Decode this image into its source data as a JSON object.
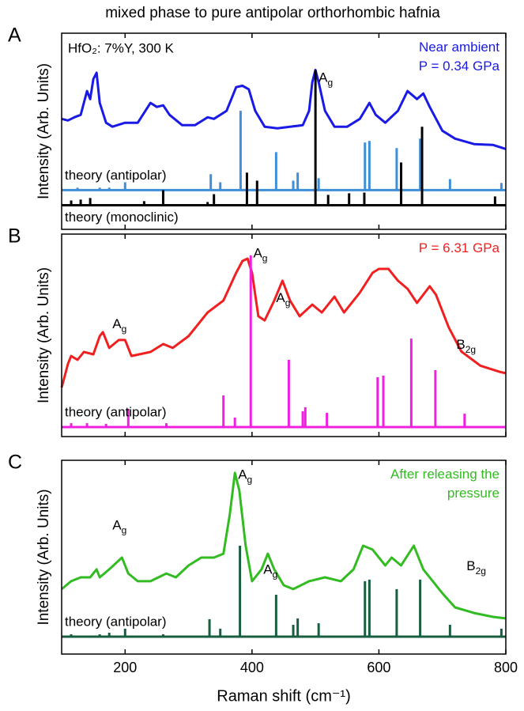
{
  "chart_data": [
    {
      "type": "line",
      "panel": "A",
      "title": "mixed phase to pure antipolar orthorhombic hafnia",
      "y_label": "Intensity (Arb. Units)",
      "sample": "HfO₂: 7%Y, 300 K",
      "pressure": "P = 0.34 GPa",
      "pressure_color": "#1a1ae6",
      "xlim": [
        100,
        800
      ],
      "ylim": [
        -0.12,
        1
      ],
      "series": [
        {
          "name": "Near ambient",
          "style": "line",
          "color": "#1a1ae6",
          "x": [
            100,
            110,
            120,
            130,
            135,
            140,
            145,
            150,
            155,
            160,
            170,
            180,
            200,
            220,
            240,
            250,
            260,
            270,
            290,
            310,
            330,
            340,
            360,
            375,
            385,
            395,
            405,
            420,
            440,
            460,
            480,
            490,
            495,
            500,
            505,
            515,
            530,
            550,
            570,
            585,
            595,
            610,
            630,
            645,
            660,
            670,
            680,
            700,
            720,
            750,
            780,
            800
          ],
          "values": [
            0.511,
            0.502,
            0.52,
            0.534,
            0.602,
            0.67,
            0.624,
            0.738,
            0.774,
            0.602,
            0.489,
            0.466,
            0.489,
            0.489,
            0.602,
            0.579,
            0.588,
            0.534,
            0.475,
            0.475,
            0.52,
            0.511,
            0.557,
            0.692,
            0.7,
            0.68,
            0.557,
            0.466,
            0.457,
            0.466,
            0.475,
            0.557,
            0.72,
            0.79,
            0.72,
            0.557,
            0.466,
            0.466,
            0.511,
            0.602,
            0.534,
            0.489,
            0.557,
            0.67,
            0.624,
            0.656,
            0.579,
            0.443,
            0.398,
            0.367,
            0.362,
            0.339
          ]
        },
        {
          "name": "theory (antipolar)",
          "style": "stick",
          "color": "#3f8fd8",
          "baseline": 0.104,
          "label_position": "above",
          "x": [
            125,
            160,
            175,
            200,
            335,
            350,
            382,
            438,
            465,
            472,
            505,
            578,
            585,
            628,
            665,
            712,
            793
          ],
          "values": [
            0.118,
            0.118,
            0.118,
            0.149,
            0.195,
            0.149,
            0.557,
            0.321,
            0.158,
            0.204,
            0.172,
            0.376,
            0.385,
            0.344,
            0.398,
            0.167,
            0.145
          ]
        },
        {
          "name": "theory (monoclinic)",
          "style": "stick",
          "color": "#000000",
          "baseline": 0.018,
          "label_position": "below",
          "x": [
            115,
            130,
            145,
            230,
            260,
            330,
            340,
            392,
            408,
            500,
            520,
            553,
            577,
            635,
            668,
            783
          ],
          "values": [
            0.045,
            0.05,
            0.059,
            0.041,
            0.104,
            0.036,
            0.081,
            0.204,
            0.158,
            0.79,
            0.077,
            0.086,
            0.09,
            0.262,
            0.466,
            0.068
          ]
        }
      ],
      "annotations": [
        {
          "text": "A",
          "sub": "g",
          "x": 505,
          "y": 0.74
        }
      ]
    },
    {
      "type": "line",
      "panel": "B",
      "y_label": "Intensity (Arb. Units)",
      "pressure": "P = 6.31 GPa",
      "pressure_color": "#f02020",
      "xlim": [
        100,
        800
      ],
      "ylim": [
        0,
        1
      ],
      "series": [
        {
          "style": "line",
          "color": "#f02020",
          "x": [
            100,
            110,
            115,
            125,
            135,
            150,
            160,
            165,
            175,
            190,
            200,
            210,
            240,
            260,
            275,
            300,
            330,
            355,
            375,
            385,
            393,
            400,
            410,
            420,
            435,
            448,
            460,
            475,
            495,
            510,
            530,
            545,
            570,
            590,
            600,
            615,
            630,
            645,
            660,
            680,
            690,
            710,
            730,
            760,
            790,
            800
          ],
          "values": [
            0.242,
            0.359,
            0.398,
            0.379,
            0.418,
            0.406,
            0.496,
            0.516,
            0.438,
            0.477,
            0.477,
            0.398,
            0.418,
            0.457,
            0.438,
            0.496,
            0.613,
            0.672,
            0.809,
            0.867,
            0.879,
            0.809,
            0.594,
            0.574,
            0.672,
            0.77,
            0.672,
            0.594,
            0.652,
            0.613,
            0.691,
            0.613,
            0.711,
            0.809,
            0.828,
            0.828,
            0.77,
            0.73,
            0.66,
            0.742,
            0.7,
            0.54,
            0.42,
            0.35,
            0.32,
            0.313
          ]
        },
        {
          "name": "theory (antipolar)",
          "style": "stick",
          "color": "#f020e0",
          "baseline": 0.047,
          "label_position": "above",
          "x": [
            115,
            140,
            170,
            205,
            265,
            355,
            373,
            398,
            458,
            480,
            484,
            518,
            598,
            607,
            651,
            689,
            735
          ],
          "values": [
            0.066,
            0.066,
            0.063,
            0.137,
            0.066,
            0.203,
            0.094,
            0.895,
            0.379,
            0.125,
            0.145,
            0.117,
            0.293,
            0.301,
            0.484,
            0.328,
            0.113
          ]
        }
      ],
      "annotations": [
        {
          "text": "A",
          "sub": "g",
          "x": 402,
          "y": 0.9
        },
        {
          "text": "A",
          "sub": "g",
          "x": 438,
          "y": 0.68
        },
        {
          "text": "A",
          "sub": "g",
          "x": 180,
          "y": 0.55
        },
        {
          "text": "B",
          "sub": "2g",
          "x": 722,
          "y": 0.45
        }
      ]
    },
    {
      "type": "line",
      "panel": "C",
      "y_label": "Intensity (Arb. Units)",
      "x_label": "Raman shift (cm⁻¹)",
      "xlim": [
        100,
        800
      ],
      "ylim": [
        0,
        1
      ],
      "xticks": [
        200,
        400,
        600,
        800
      ],
      "series": [
        {
          "name": "After releasing the pressure",
          "style": "line",
          "color": "#33bb22",
          "x": [
            100,
            115,
            130,
            145,
            155,
            160,
            175,
            195,
            205,
            220,
            240,
            265,
            280,
            300,
            320,
            340,
            355,
            365,
            373,
            380,
            390,
            400,
            415,
            425,
            435,
            450,
            465,
            490,
            515,
            540,
            560,
            575,
            590,
            610,
            620,
            635,
            655,
            670,
            700,
            720,
            750,
            780,
            800
          ],
          "values": [
            0.335,
            0.376,
            0.396,
            0.396,
            0.437,
            0.396,
            0.437,
            0.498,
            0.416,
            0.376,
            0.376,
            0.416,
            0.396,
            0.457,
            0.498,
            0.498,
            0.518,
            0.722,
            0.935,
            0.845,
            0.559,
            0.376,
            0.437,
            0.518,
            0.437,
            0.355,
            0.335,
            0.376,
            0.396,
            0.376,
            0.437,
            0.559,
            0.539,
            0.457,
            0.498,
            0.457,
            0.559,
            0.437,
            0.314,
            0.241,
            0.212,
            0.192,
            0.184
          ]
        },
        {
          "name": "theory (antipolar)",
          "style": "stick",
          "color": "#1a5e40",
          "baseline": 0.09,
          "label_position": "above",
          "x": [
            115,
            160,
            175,
            200,
            260,
            333,
            350,
            381,
            438,
            465,
            472,
            505,
            578,
            585,
            628,
            665,
            712,
            793
          ],
          "values": [
            0.102,
            0.102,
            0.11,
            0.131,
            0.102,
            0.18,
            0.131,
            0.559,
            0.306,
            0.151,
            0.184,
            0.159,
            0.376,
            0.384,
            0.335,
            0.384,
            0.151,
            0.131
          ]
        }
      ],
      "annotations": [
        {
          "text": "A",
          "sub": "g",
          "x": 378,
          "y": 0.92
        },
        {
          "text": "A",
          "sub": "g",
          "x": 418,
          "y": 0.43
        },
        {
          "text": "A",
          "sub": "g",
          "x": 180,
          "y": 0.66
        },
        {
          "text": "B",
          "sub": "2g",
          "x": 738,
          "y": 0.45
        }
      ]
    }
  ]
}
